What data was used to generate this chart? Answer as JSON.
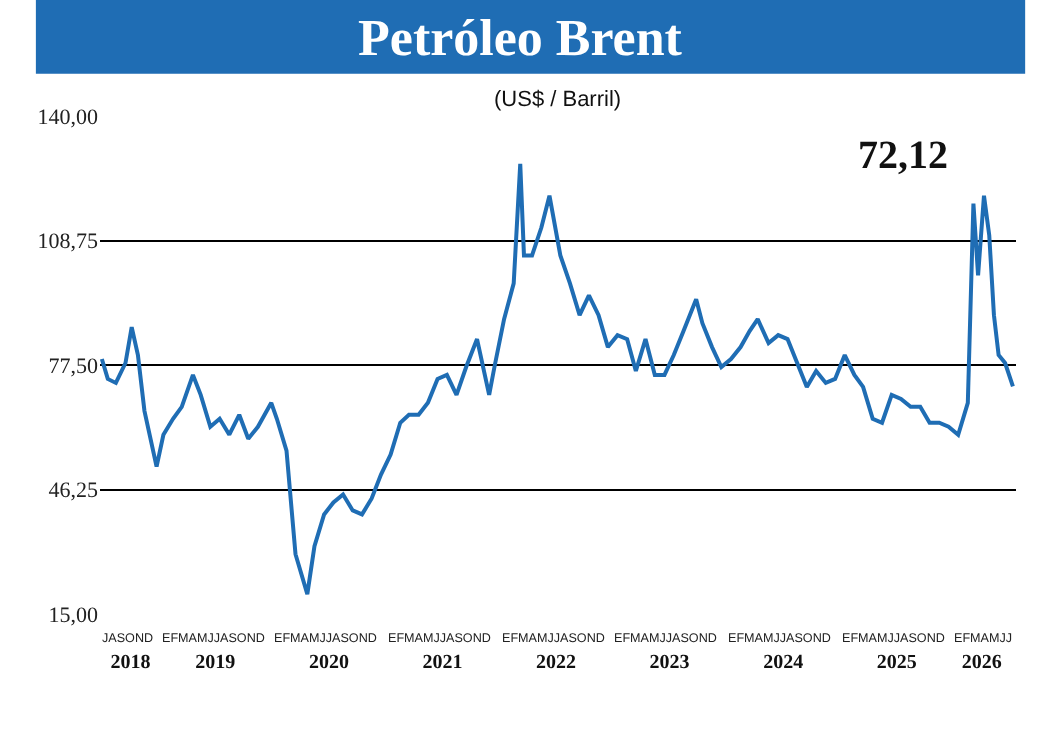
{
  "chart_data": {
    "type": "line",
    "title": "Petróleo Brent",
    "subtitle": "(US$ / Barril)",
    "annotations": [
      "72,12",
      "JASOND",
      "EFMAMJJASOND",
      "EFMAMJJASOND",
      "EFMAMJJASOND",
      "EFMAMJJASOND",
      "EFMAMJJASOND",
      "EFMAMJJASOND",
      "EFMAMJJASOND",
      "EFMAMJJ"
    ],
    "x": [
      "2018-07-01",
      "2018-07-20",
      "2018-08-15",
      "2018-09-15",
      "2018-10-05",
      "2018-10-25",
      "2018-11-15",
      "2018-12-24",
      "2019-01-15",
      "2019-02-15",
      "2019-03-15",
      "2019-04-20",
      "2019-05-15",
      "2019-06-15",
      "2019-07-15",
      "2019-08-15",
      "2019-09-16",
      "2019-10-15",
      "2019-11-15",
      "2019-12-28",
      "2020-01-15",
      "2020-02-15",
      "2020-03-15",
      "2020-04-22",
      "2020-05-15",
      "2020-06-15",
      "2020-07-15",
      "2020-08-15",
      "2020-09-15",
      "2020-10-15",
      "2020-11-15",
      "2020-12-15",
      "2021-01-15",
      "2021-02-15",
      "2021-03-15",
      "2021-04-15",
      "2021-05-15",
      "2021-06-15",
      "2021-07-15",
      "2021-08-15",
      "2021-09-15",
      "2021-10-20",
      "2021-11-28",
      "2021-12-15",
      "2022-01-15",
      "2022-02-15",
      "2022-03-08",
      "2022-03-20",
      "2022-04-15",
      "2022-05-15",
      "2022-06-10",
      "2022-07-15",
      "2022-08-15",
      "2022-09-15",
      "2022-10-15",
      "2022-11-15",
      "2022-12-15",
      "2023-01-15",
      "2023-02-15",
      "2023-03-15",
      "2023-04-15",
      "2023-05-15",
      "2023-06-15",
      "2023-07-15",
      "2023-08-15",
      "2023-09-25",
      "2023-10-15",
      "2023-11-15",
      "2023-12-15",
      "2024-01-15",
      "2024-02-15",
      "2024-03-15",
      "2024-04-10",
      "2024-05-15",
      "2024-06-15",
      "2024-07-15",
      "2024-08-15",
      "2024-09-15",
      "2024-10-15",
      "2024-11-15",
      "2024-12-15",
      "2025-01-15",
      "2025-02-15",
      "2025-03-15",
      "2025-04-15",
      "2025-05-15",
      "2025-06-15",
      "2025-07-15",
      "2025-08-15",
      "2025-09-15",
      "2025-10-15",
      "2025-11-15",
      "2025-12-15",
      "2026-01-15",
      "2026-02-15",
      "2026-03-05",
      "2026-03-20",
      "2026-04-08",
      "2026-04-25",
      "2026-05-10",
      "2026-05-25",
      "2026-06-15",
      "2026-07-10"
    ],
    "series": [
      {
        "color": "#1f6db4",
        "values": [
          79,
          74,
          73,
          78,
          87,
          80,
          66,
          52,
          60,
          64,
          67,
          75,
          70,
          62,
          64,
          60,
          65,
          59,
          62,
          68,
          64,
          56,
          30,
          20,
          32,
          40,
          43,
          45,
          41,
          40,
          44,
          50,
          55,
          63,
          65,
          65,
          68,
          74,
          75,
          70,
          77,
          84,
          70,
          77,
          89,
          98,
          128,
          105,
          105,
          112,
          120,
          105,
          98,
          90,
          95,
          90,
          82,
          85,
          84,
          76,
          84,
          75,
          75,
          80,
          86,
          94,
          88,
          82,
          77,
          79,
          82,
          86,
          89,
          83,
          85,
          84,
          78,
          72,
          76,
          73,
          74,
          80,
          75,
          72,
          64,
          63,
          70,
          69,
          67,
          67,
          63,
          63,
          62,
          60,
          68,
          118,
          100,
          120,
          110,
          90,
          80,
          78,
          72.12
        ]
      }
    ],
    "xlim": [
      "2018-06-25",
      "2026-07-20"
    ],
    "ylim": [
      15,
      140
    ],
    "yticks": [
      {
        "value": 15,
        "label": "15,00"
      },
      {
        "value": 46.25,
        "label": "46,25"
      },
      {
        "value": 77.5,
        "label": "77,50"
      },
      {
        "value": 108.75,
        "label": "108,75"
      },
      {
        "value": 140,
        "label": "140,00"
      }
    ],
    "xticks": [
      {
        "value": "2018-10-01",
        "label": "2018"
      },
      {
        "value": "2019-07-01",
        "label": "2019"
      },
      {
        "value": "2020-07-01",
        "label": "2020"
      },
      {
        "value": "2021-07-01",
        "label": "2021"
      },
      {
        "value": "2022-07-01",
        "label": "2022"
      },
      {
        "value": "2023-07-01",
        "label": "2023"
      },
      {
        "value": "2024-07-01",
        "label": "2024"
      },
      {
        "value": "2025-07-01",
        "label": "2025"
      },
      {
        "value": "2026-04-01",
        "label": "2026"
      }
    ],
    "grid": "y",
    "marker": "none",
    "line_style": "solid"
  }
}
